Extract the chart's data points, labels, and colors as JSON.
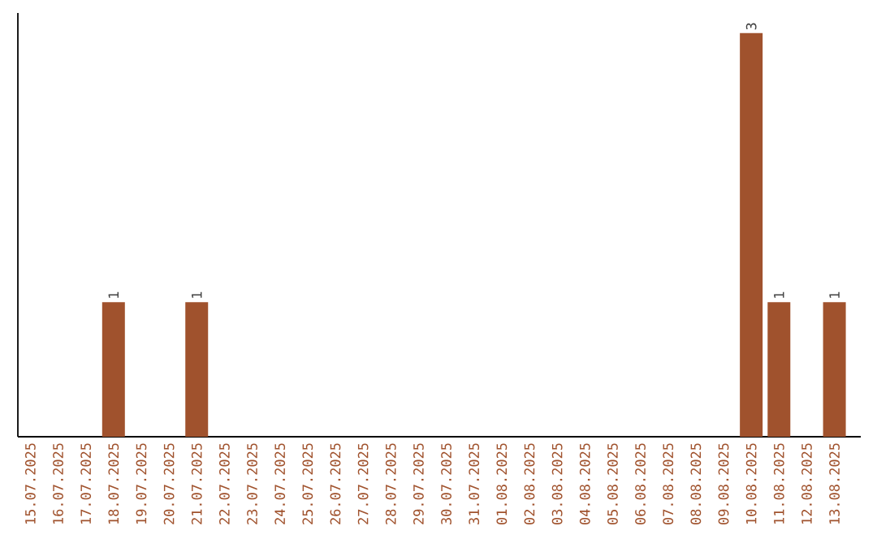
{
  "chart_data": {
    "type": "bar",
    "categories": [
      "15.07.2025",
      "16.07.2025",
      "17.07.2025",
      "18.07.2025",
      "19.07.2025",
      "20.07.2025",
      "21.07.2025",
      "22.07.2025",
      "23.07.2025",
      "24.07.2025",
      "25.07.2025",
      "26.07.2025",
      "27.07.2025",
      "28.07.2025",
      "29.07.2025",
      "30.07.2025",
      "31.07.2025",
      "01.08.2025",
      "02.08.2025",
      "03.08.2025",
      "04.08.2025",
      "05.08.2025",
      "06.08.2025",
      "07.08.2025",
      "08.08.2025",
      "09.08.2025",
      "10.08.2025",
      "11.08.2025",
      "12.08.2025",
      "13.08.2025"
    ],
    "values": [
      0,
      0,
      0,
      1,
      0,
      0,
      1,
      0,
      0,
      0,
      0,
      0,
      0,
      0,
      0,
      0,
      0,
      0,
      0,
      0,
      0,
      0,
      0,
      0,
      0,
      0,
      3,
      1,
      0,
      1
    ],
    "value_labels": [
      null,
      null,
      null,
      "1",
      null,
      null,
      "1",
      null,
      null,
      null,
      null,
      null,
      null,
      null,
      null,
      null,
      null,
      null,
      null,
      null,
      null,
      null,
      null,
      null,
      null,
      null,
      "3",
      "1",
      null,
      "1"
    ],
    "color": "#a0522d"
  }
}
